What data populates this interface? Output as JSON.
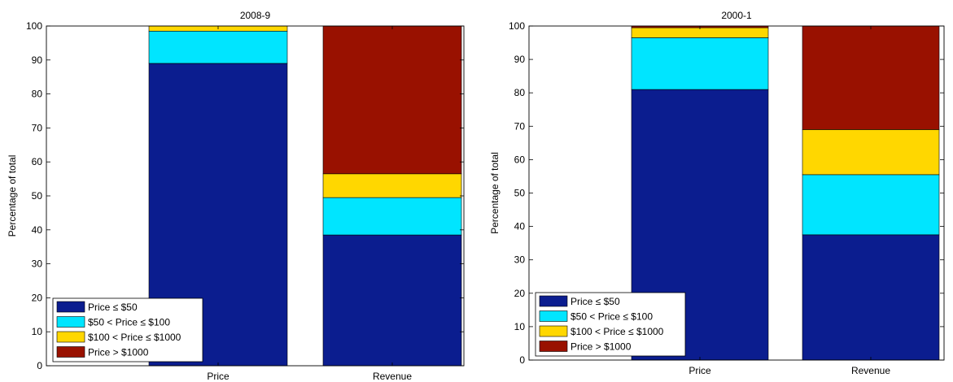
{
  "chart_data": [
    {
      "type": "bar",
      "stacked": true,
      "title": "2008-9",
      "xlabel": "",
      "ylabel": "Percentage of total",
      "ylim": [
        0,
        100
      ],
      "yticks": [
        0,
        10,
        20,
        30,
        40,
        50,
        60,
        70,
        80,
        90,
        100
      ],
      "categories": [
        "Price",
        "Revenue"
      ],
      "legend_position": "bottom-left",
      "series": [
        {
          "name": "Price ≤ $50",
          "color": "#0b1d8f",
          "values": [
            89,
            38.5
          ]
        },
        {
          "name": "$50 < Price ≤ $100",
          "color": "#00e5ff",
          "values": [
            9.5,
            11
          ]
        },
        {
          "name": "$100 < Price ≤ $1000",
          "color": "#ffd700",
          "values": [
            1.5,
            7
          ]
        },
        {
          "name": "Price > $1000",
          "color": "#991100",
          "values": [
            0,
            43.5
          ]
        }
      ]
    },
    {
      "type": "bar",
      "stacked": true,
      "title": "2000-1",
      "xlabel": "",
      "ylabel": "Percentage of total",
      "ylim": [
        0,
        100
      ],
      "yticks": [
        0,
        10,
        20,
        30,
        40,
        50,
        60,
        70,
        80,
        90,
        100
      ],
      "categories": [
        "Price",
        "Revenue"
      ],
      "legend_position": "bottom-left",
      "series": [
        {
          "name": "Price ≤ $50",
          "color": "#0b1d8f",
          "values": [
            81,
            37.5
          ]
        },
        {
          "name": "$50 < Price ≤ $100",
          "color": "#00e5ff",
          "values": [
            15.5,
            18
          ]
        },
        {
          "name": "$100 < Price ≤ $1000",
          "color": "#ffd700",
          "values": [
            3,
            13.5
          ]
        },
        {
          "name": "Price > $1000",
          "color": "#991100",
          "values": [
            0.5,
            31
          ]
        }
      ]
    }
  ]
}
